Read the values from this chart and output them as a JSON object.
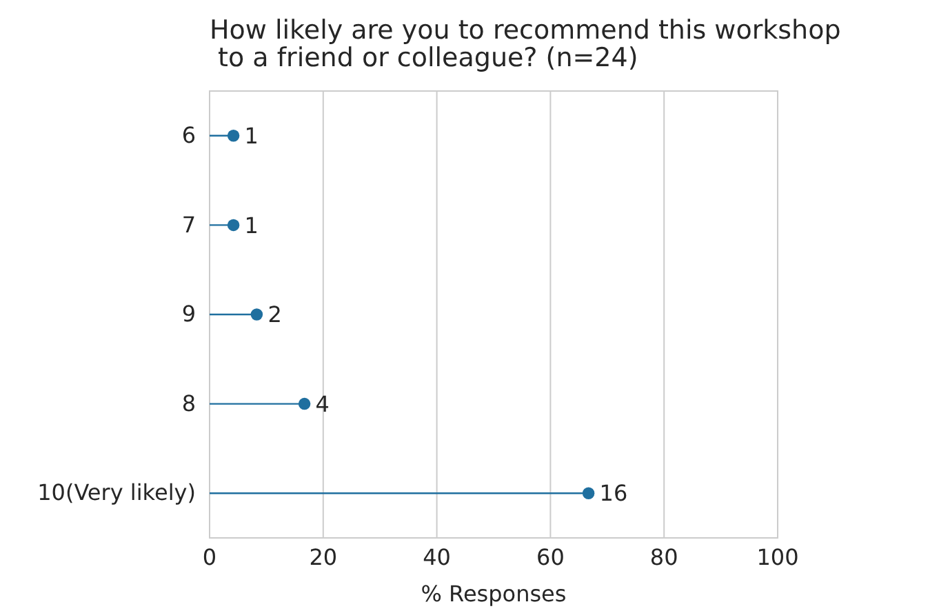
{
  "chart_data": {
    "type": "lollipop",
    "orientation": "horizontal",
    "title": "How likely are you to recommend this workshop\n to a friend or colleague? (n=24)",
    "xlabel": "% Responses",
    "categories": [
      "6",
      "7",
      "9",
      "8",
      "10(Very likely)"
    ],
    "series": [
      {
        "color": "#1f6f9f",
        "values": [
          4.2,
          4.2,
          8.3,
          16.7,
          66.7
        ]
      }
    ],
    "annotations": [
      {
        "text": "1",
        "x": 4.2,
        "y": "6"
      },
      {
        "text": "1",
        "x": 4.2,
        "y": "7"
      },
      {
        "text": "2",
        "x": 8.3,
        "y": "9"
      },
      {
        "text": "4",
        "x": 16.7,
        "y": "8"
      },
      {
        "text": "16",
        "x": 66.7,
        "y": "10(Very likely)"
      }
    ],
    "xlim": [
      0,
      100
    ],
    "xticks": [
      0,
      20,
      40,
      60,
      80,
      100
    ],
    "grid": "x",
    "marker": "circle"
  }
}
